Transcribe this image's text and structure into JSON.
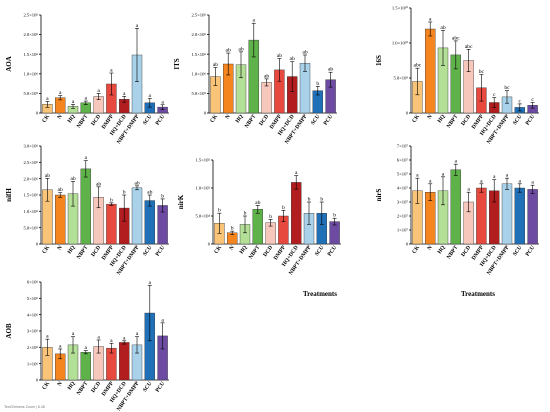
{
  "colors": [
    "#f9c477",
    "#f5861f",
    "#b4df97",
    "#5fb14a",
    "#f8c7bc",
    "#e8493f",
    "#b21e1f",
    "#a9d2ea",
    "#1f70b7",
    "#6d4ba3"
  ],
  "footer": "Text/Chinese Zoom | 6.36",
  "chart_data": [
    {
      "type": "bar",
      "ylabel": "AOA",
      "categories": [
        "CK",
        "N",
        "HQ",
        "NBPT",
        "DCD",
        "DMPP",
        "HQ+DCD",
        "NBPT+DMPP",
        "SCU",
        "PCU"
      ],
      "ylim": [
        0,
        2500000
      ],
      "yticks": [
        "0",
        "5.0×10⁵",
        "1.0×10⁶",
        "1.5×10⁶",
        "2.0×10⁶",
        "2.5×10⁶"
      ],
      "values": [
        220000,
        390000,
        170000,
        260000,
        420000,
        740000,
        350000,
        1480000,
        260000,
        150000
      ],
      "errors": [
        75000,
        55000,
        50000,
        45000,
        80000,
        280000,
        75000,
        680000,
        110000,
        60000
      ],
      "significance": [
        "a",
        "a",
        "a",
        "a",
        "a",
        "a",
        "a",
        "a",
        "a",
        "a"
      ]
    },
    {
      "type": "bar",
      "ylabel": "ITS",
      "categories": [
        "CK",
        "N",
        "HQ",
        "NBPT",
        "DCD",
        "DMPP",
        "HQ+DCD",
        "NBPT+DMPP",
        "SCU",
        "PCU"
      ],
      "ylim": [
        0,
        2500000
      ],
      "yticks": [
        "0",
        "5.0×10⁵",
        "1.0×10⁶",
        "1.5×10⁶",
        "2.0×10⁶",
        "2.5×10⁶"
      ],
      "values": [
        930000,
        1250000,
        1230000,
        1860000,
        780000,
        1100000,
        930000,
        1270000,
        570000,
        850000
      ],
      "errors": [
        230000,
        280000,
        330000,
        430000,
        90000,
        290000,
        380000,
        210000,
        110000,
        190000
      ],
      "significance": [
        "ab",
        "ab",
        "ab",
        "a",
        "ab",
        "ab",
        "ab",
        "ab",
        "b",
        "ab"
      ]
    },
    {
      "type": "bar",
      "ylabel": "16S",
      "categories": [
        "CK",
        "N",
        "HQ",
        "NBPT",
        "DCD",
        "DMPP",
        "HQ+DCD",
        "NBPT+DMPP",
        "SCU",
        "PCU"
      ],
      "ylim": [
        0,
        15000000000
      ],
      "yticks": [
        "0",
        "5.0×10⁹",
        "1.0×10¹⁰",
        "1.5×10¹⁰"
      ],
      "values": [
        4500000000,
        12000000000,
        9300000000,
        8300000000,
        7500000000,
        3600000000,
        1500000000,
        2300000000,
        800000000,
        1100000000
      ],
      "errors": [
        1900000000,
        1000000000,
        2500000000,
        2000000000,
        1600000000,
        1900000000,
        700000000,
        900000000,
        500000000,
        400000000
      ],
      "significance": [
        "abc",
        "a",
        "ab",
        "abc",
        "abc",
        "bc",
        "c",
        "bc",
        "c",
        "c"
      ]
    },
    {
      "type": "bar",
      "ylabel": "nifH",
      "categories": [
        "CK",
        "N",
        "HQ",
        "NBPT",
        "DCD",
        "DMPP",
        "HQ+DCD",
        "NBPT+DMPP",
        "SCU",
        "PCU"
      ],
      "ylim": [
        0,
        3000000
      ],
      "yticks": [
        "0",
        "5.0×10⁵",
        "1.0×10⁶",
        "1.5×10⁶",
        "2.0×10⁶",
        "2.5×10⁶",
        "3.0×10⁶"
      ],
      "values": [
        1660000,
        1500000,
        1540000,
        2300000,
        1430000,
        1220000,
        1100000,
        1720000,
        1330000,
        1180000
      ],
      "errors": [
        350000,
        70000,
        380000,
        250000,
        320000,
        40000,
        400000,
        60000,
        170000,
        200000
      ],
      "significance": [
        "ab",
        "ab",
        "ab",
        "a",
        "ab",
        "b",
        "b",
        "ab",
        "ab",
        "b"
      ]
    },
    {
      "type": "bar",
      "ylabel": "nirK",
      "categories": [
        "CK",
        "N",
        "HQ",
        "NBPT",
        "DCD",
        "DMPP",
        "HQ+DCD",
        "NBPT+DMPP",
        "SCU",
        "PCU"
      ],
      "ylim": [
        0,
        150000
      ],
      "yticks": [
        "0",
        "5.0×10⁴",
        "1.0×10⁵",
        "1.5×10⁵"
      ],
      "values": [
        37000,
        20000,
        35000,
        62000,
        38000,
        50000,
        110000,
        55000,
        55000,
        40000
      ],
      "errors": [
        18000,
        3000,
        15000,
        7000,
        6000,
        10000,
        12000,
        20000,
        20000,
        6000
      ],
      "significance": [
        "b",
        "b",
        "b",
        "ab",
        "b",
        "b",
        "a",
        "b",
        "b",
        "b"
      ]
    },
    {
      "type": "bar",
      "ylabel": "nirS",
      "categories": [
        "CK",
        "N",
        "HQ",
        "NBPT",
        "DCD",
        "DMPP",
        "HQ+DCD",
        "NBPT+DMPP",
        "SCU",
        "PCU"
      ],
      "ylim": [
        0,
        70000000
      ],
      "yticks": [
        "0",
        "1×10⁷",
        "2×10⁷",
        "3×10⁷",
        "4×10⁷",
        "5×10⁷",
        "6×10⁷",
        "7×10⁷"
      ],
      "values": [
        38000000,
        37000000,
        38000000,
        53000000,
        30000000,
        40000000,
        38000000,
        43000000,
        40000000,
        39000000
      ],
      "errors": [
        9000000,
        6000000,
        10000000,
        4000000,
        7000000,
        3000000,
        8000000,
        4000000,
        3000000,
        3000000
      ],
      "significance": [
        "a",
        "a",
        "a",
        "a",
        "a",
        "a",
        "a",
        "a",
        "a",
        "a"
      ]
    },
    {
      "type": "bar",
      "ylabel": "AOB",
      "categories": [
        "CK",
        "N",
        "HQ",
        "NBPT",
        "DCD",
        "DMPP",
        "HQ+DCD",
        "NBPT+DMPP",
        "SCU",
        "PCU"
      ],
      "ylim": [
        0,
        6000000
      ],
      "yticks": [
        "0",
        "1×10⁶",
        "2×10⁶",
        "3×10⁶",
        "4×10⁶",
        "5×10⁶",
        "6×10⁶"
      ],
      "values": [
        2000000,
        1600000,
        2150000,
        1700000,
        2050000,
        1950000,
        2300000,
        2150000,
        4100000,
        2700000
      ],
      "errors": [
        500000,
        300000,
        500000,
        100000,
        400000,
        300000,
        100000,
        500000,
        1700000,
        800000
      ],
      "significance": [
        "a",
        "a",
        "a",
        "a",
        "a",
        "a",
        "a",
        "a",
        "a",
        "a"
      ]
    }
  ],
  "xlabels": [
    "Treatments",
    "Treatments"
  ]
}
